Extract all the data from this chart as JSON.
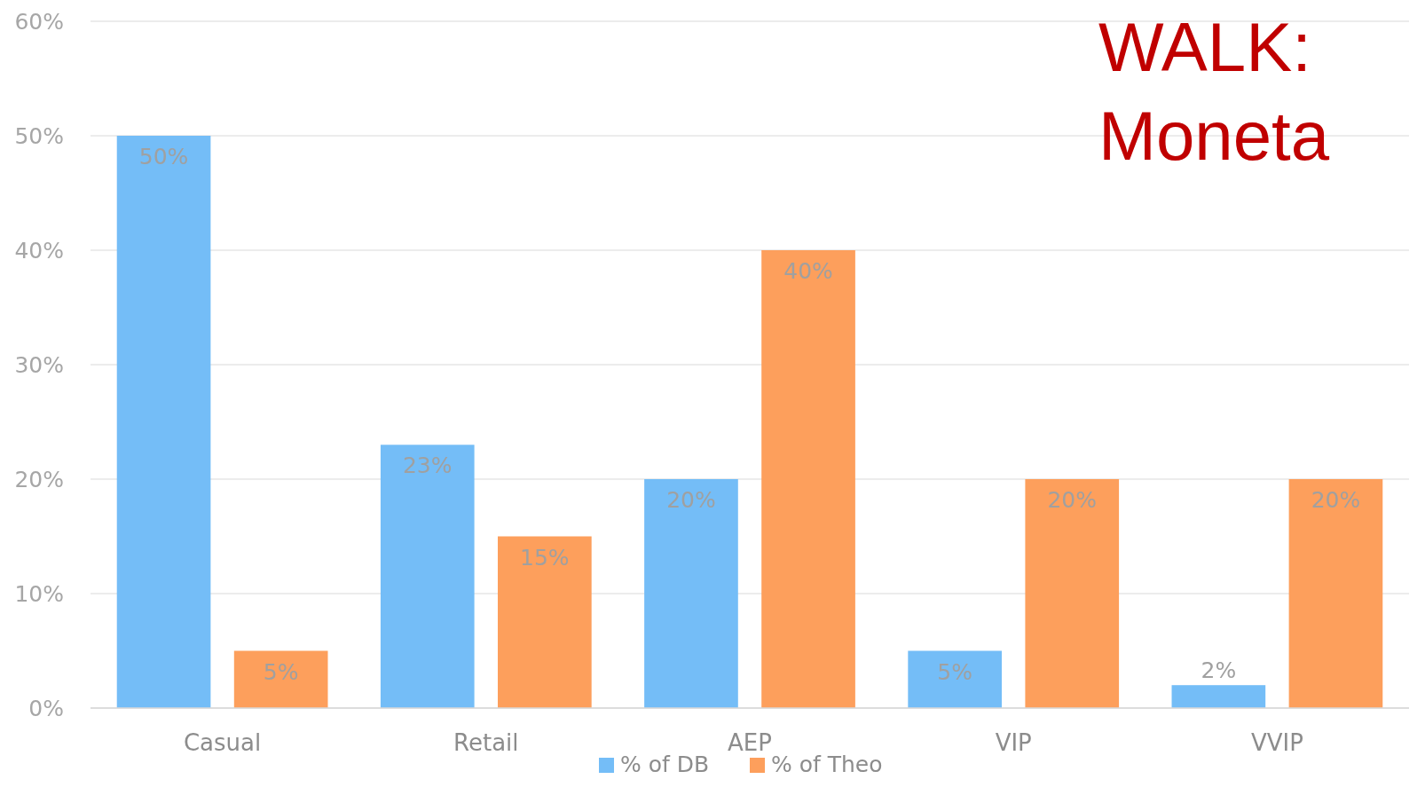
{
  "chart_data": {
    "type": "bar",
    "title": "WALK: Moneta",
    "categories": [
      "Casual",
      "Retail",
      "AEP",
      "VIP",
      "VVIP"
    ],
    "series": [
      {
        "name": "% of DB",
        "color": "#74bdf7",
        "values": [
          50,
          23,
          20,
          5,
          2
        ],
        "value_labels": [
          "50%",
          "23%",
          "20%",
          "5%",
          "2%"
        ]
      },
      {
        "name": "% of Theo",
        "color": "#fd9f5c",
        "values": [
          5,
          15,
          40,
          20,
          20
        ],
        "value_labels": [
          "5%",
          "15%",
          "40%",
          "20%",
          "20%"
        ]
      }
    ],
    "ylim": [
      0,
      60
    ],
    "yticks": [
      {
        "value": 0,
        "label": "0%"
      },
      {
        "value": 10,
        "label": "10%"
      },
      {
        "value": 20,
        "label": "20%"
      },
      {
        "value": 30,
        "label": "30%"
      },
      {
        "value": 40,
        "label": "40%"
      },
      {
        "value": 50,
        "label": "50%"
      },
      {
        "value": 60,
        "label": "60%"
      }
    ],
    "grid": "y",
    "legend": "bottom"
  }
}
